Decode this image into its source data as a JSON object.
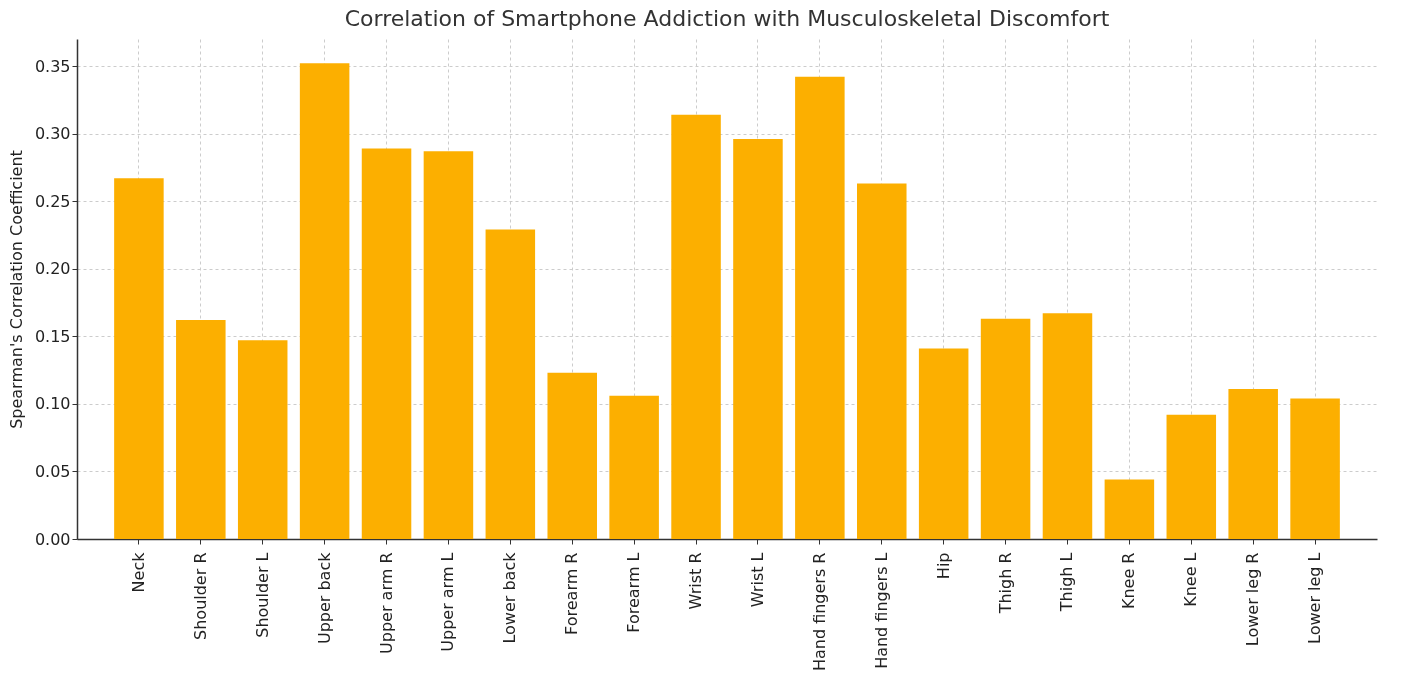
{
  "chart_data": {
    "type": "bar",
    "title": "Correlation of Smartphone Addiction with Musculoskeletal Discomfort",
    "ylabel": "Spearman's Correlation Coefficient",
    "categories": [
      "Neck",
      "Shoulder R",
      "Shoulder L",
      "Upper back",
      "Upper arm R",
      "Upper arm L",
      "Lower back",
      "Forearm R",
      "Forearm L",
      "Wrist R",
      "Wrist L",
      "Hand fingers R",
      "Hand fingers L",
      "Hip",
      "Thigh R",
      "Thigh L",
      "Knee R",
      "Knee L",
      "Lower leg R",
      "Lower leg L"
    ],
    "values": [
      0.267,
      0.162,
      0.147,
      0.352,
      0.289,
      0.287,
      0.229,
      0.123,
      0.106,
      0.314,
      0.296,
      0.342,
      0.263,
      0.141,
      0.163,
      0.167,
      0.044,
      0.092,
      0.111,
      0.104
    ],
    "color": "#fcaf00",
    "ylim": [
      0,
      0.37
    ],
    "yticks": [
      {
        "value": 0,
        "label": "0.00"
      },
      0.05,
      {
        "value": 0.1,
        "label": "0.10"
      },
      0.15,
      {
        "value": 0.2,
        "label": "0.20"
      },
      0.25,
      {
        "value": 0.3,
        "label": "0.30"
      },
      0.35
    ],
    "grid": true
  }
}
